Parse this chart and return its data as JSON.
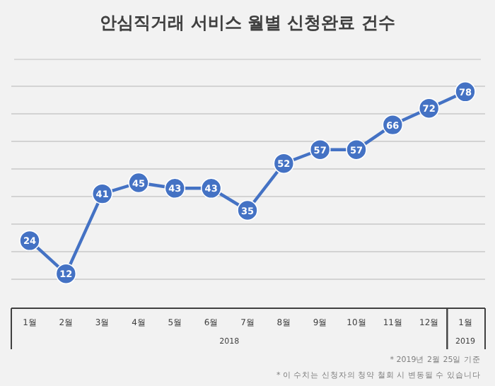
{
  "chart_data": {
    "type": "line",
    "title": "안심직거래 서비스  월별 신청완료 건수",
    "categories": [
      "1월",
      "2월",
      "3월",
      "4월",
      "5월",
      "6월",
      "7월",
      "8월",
      "9월",
      "10월",
      "11월",
      "12월",
      "1월"
    ],
    "series": [
      {
        "color": "#4472c4",
        "values": [
          24,
          12,
          41,
          45,
          43,
          43,
          35,
          52,
          57,
          57,
          66,
          72,
          78
        ]
      }
    ],
    "ylim": [
      0,
      80
    ],
    "yticks": [
      {
        "value": 10,
        "label": null
      },
      {
        "value": 20,
        "label": null
      },
      {
        "value": 30,
        "label": null
      },
      {
        "value": 40,
        "label": null
      },
      {
        "value": 50,
        "label": null
      },
      {
        "value": 60,
        "label": null
      },
      {
        "value": 70,
        "label": null
      },
      {
        "value": 80,
        "label": null
      }
    ],
    "grid": "y",
    "tick_labels": "x",
    "data_labels": true,
    "marker": "circle",
    "line_style": "solid",
    "annotations": [
      "2018",
      "2019",
      "* 2019년 2월 25일 기준",
      "* 이 수치는 신청자의 청약 철회 시 변동될 수 있습니다"
    ]
  }
}
